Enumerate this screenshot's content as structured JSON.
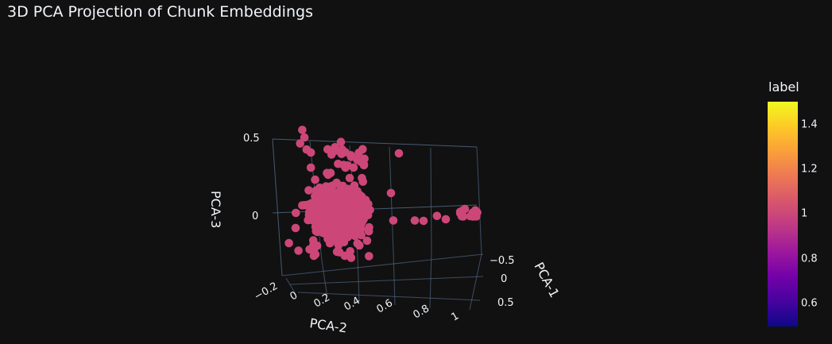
{
  "chart_data": {
    "type": "scatter",
    "title": "3D PCA Projection of Chunk Embeddings",
    "axes": {
      "x": {
        "label": "PCA-1",
        "ticks": [
          "−0.5",
          "0",
          "0.5"
        ]
      },
      "y": {
        "label": "PCA-2",
        "ticks": [
          "−0.2",
          "0",
          "0.2",
          "0.4",
          "0.6",
          "0.8",
          "1"
        ]
      },
      "z": {
        "label": "PCA-3",
        "ticks": [
          "0.5",
          "0"
        ]
      }
    },
    "grid": true,
    "marker_color": "#cc4778",
    "colorbar": {
      "title": "label",
      "ticks": [
        "1.4",
        "1.2",
        "1",
        "0.8",
        "0.6"
      ],
      "range": [
        0.5,
        1.5
      ],
      "colorscale": "plasma"
    },
    "series": [
      {
        "label_value": 1,
        "points": [
          {
            "pca2": 0.02,
            "pca3": 0.55
          },
          {
            "pca2": 0.03,
            "pca3": 0.5
          },
          {
            "pca2": 0.01,
            "pca3": 0.46
          },
          {
            "pca2": 0.04,
            "pca3": 0.42
          },
          {
            "pca2": 0.06,
            "pca3": 0.4
          },
          {
            "pca2": 0.2,
            "pca3": 0.47
          },
          {
            "pca2": 0.18,
            "pca3": 0.2
          },
          {
            "pca2": 0.06,
            "pca3": 0.3
          },
          {
            "pca2": 0.08,
            "pca3": 0.22
          },
          {
            "pca2": 0.05,
            "pca3": 0.15
          },
          {
            "pca2": 0.02,
            "pca3": 0.05
          },
          {
            "pca2": -0.01,
            "pca3": 0.0
          },
          {
            "pca2": 0.0,
            "pca3": -0.1
          },
          {
            "pca2": -0.02,
            "pca3": -0.2
          },
          {
            "pca2": 0.03,
            "pca3": -0.25
          },
          {
            "pca2": 0.45,
            "pca3": -0.05
          },
          {
            "pca2": 0.55,
            "pca3": -0.05
          },
          {
            "pca2": 0.65,
            "pca3": -0.02
          }
        ]
      }
    ]
  }
}
